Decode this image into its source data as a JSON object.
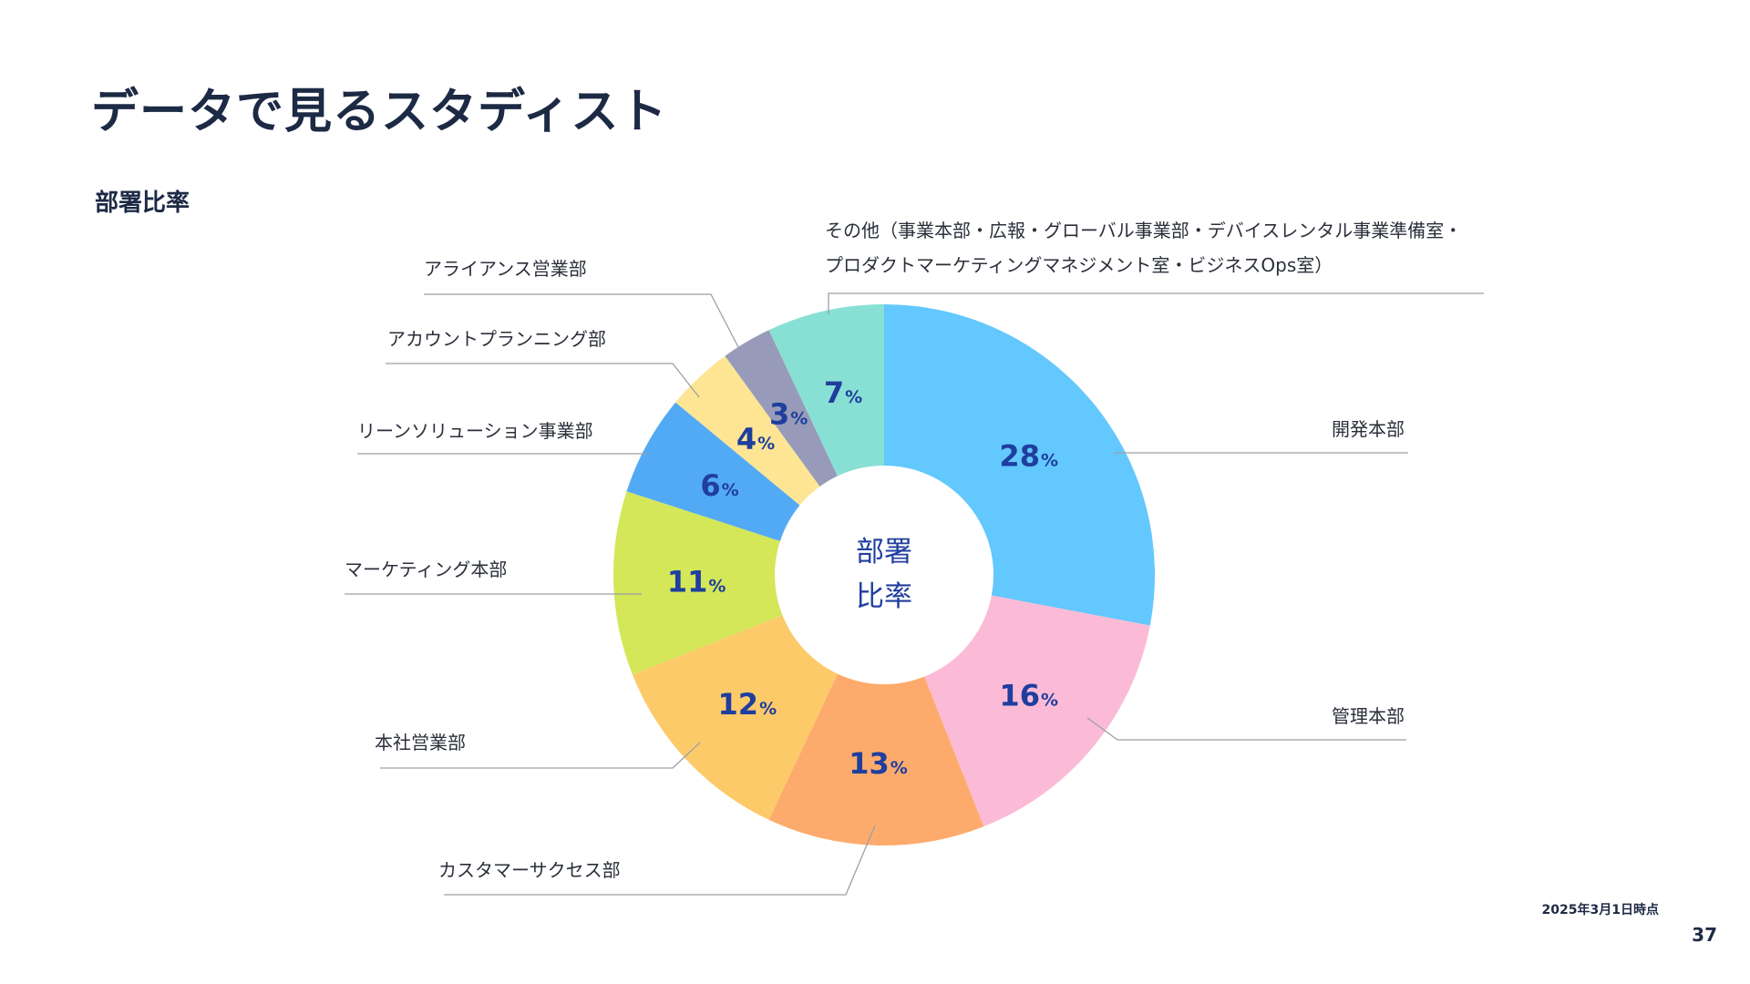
{
  "header": {
    "title": "データで見るスタディスト",
    "section_label": "部署比率"
  },
  "footer": {
    "date_note": "2025年3月1日時点",
    "page_number": "37"
  },
  "chart_data": {
    "type": "pie",
    "center_label": [
      "部署",
      "比率"
    ],
    "percent_suffix": "%",
    "slices": [
      {
        "label": "開発本部",
        "value": 28,
        "color": "#63c8fd"
      },
      {
        "label": "管理本部",
        "value": 16,
        "color": "#fbbbd6"
      },
      {
        "label": "カスタマーサクセス部",
        "value": 13,
        "color": "#fdab6c"
      },
      {
        "label": "本社営業部",
        "value": 12,
        "color": "#fdca69"
      },
      {
        "label": "マーケティング本部",
        "value": 11,
        "color": "#d4e758"
      },
      {
        "label": "リーンソリューション事業部",
        "value": 6,
        "color": "#52aaf4"
      },
      {
        "label": "アカウントプランニング部",
        "value": 4,
        "color": "#fde594"
      },
      {
        "label": "アライアンス営業部",
        "value": 3,
        "color": "#979bb9"
      },
      {
        "label": [
          "その他（事業本部・広報・グローバル事業部・デバイスレンタル事業準備室・",
          "プロダクトマーケティングマネジメント室・ビジネスOps室）"
        ],
        "value": 7,
        "color": "#88e0d4"
      }
    ],
    "value_label_color": "#1f3e9e",
    "leader_color": "#9aa0a8"
  }
}
